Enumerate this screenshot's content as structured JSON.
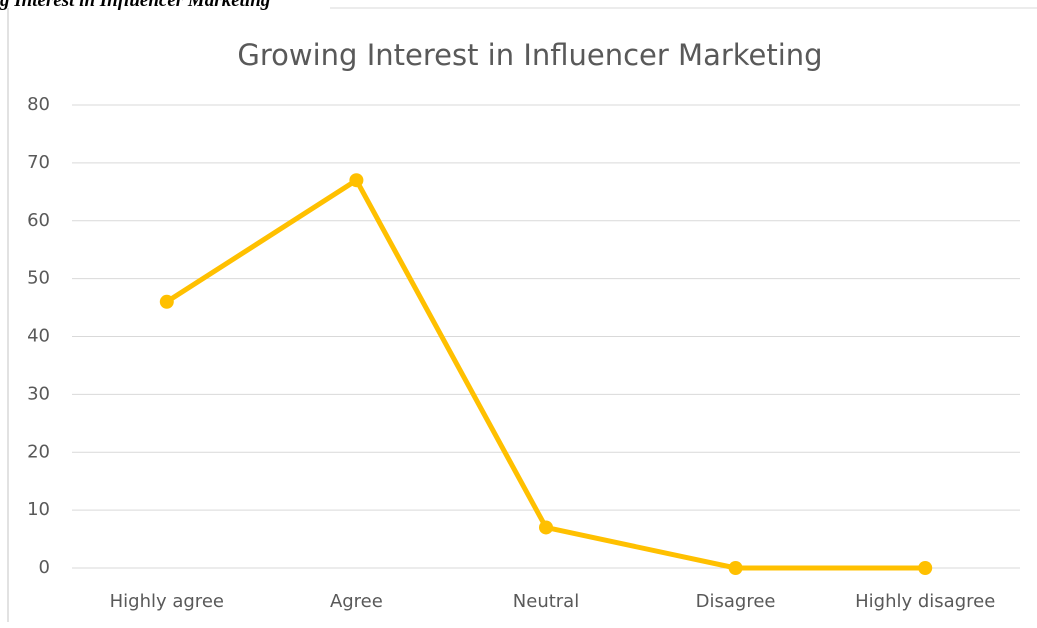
{
  "caption": "g Interest in Influencer Marketing",
  "chart_data": {
    "type": "line",
    "title": "Growing Interest in Influencer Marketing",
    "categories": [
      "Highly agree",
      "Agree",
      "Neutral",
      "Disagree",
      "Highly disagree"
    ],
    "series": [
      {
        "color": "#ffc000",
        "values": [
          46,
          67,
          7,
          0,
          0
        ]
      }
    ],
    "ylim": [
      0,
      80
    ],
    "yticks": [
      0,
      10,
      20,
      30,
      40,
      50,
      60,
      70,
      80
    ],
    "grid": true
  }
}
